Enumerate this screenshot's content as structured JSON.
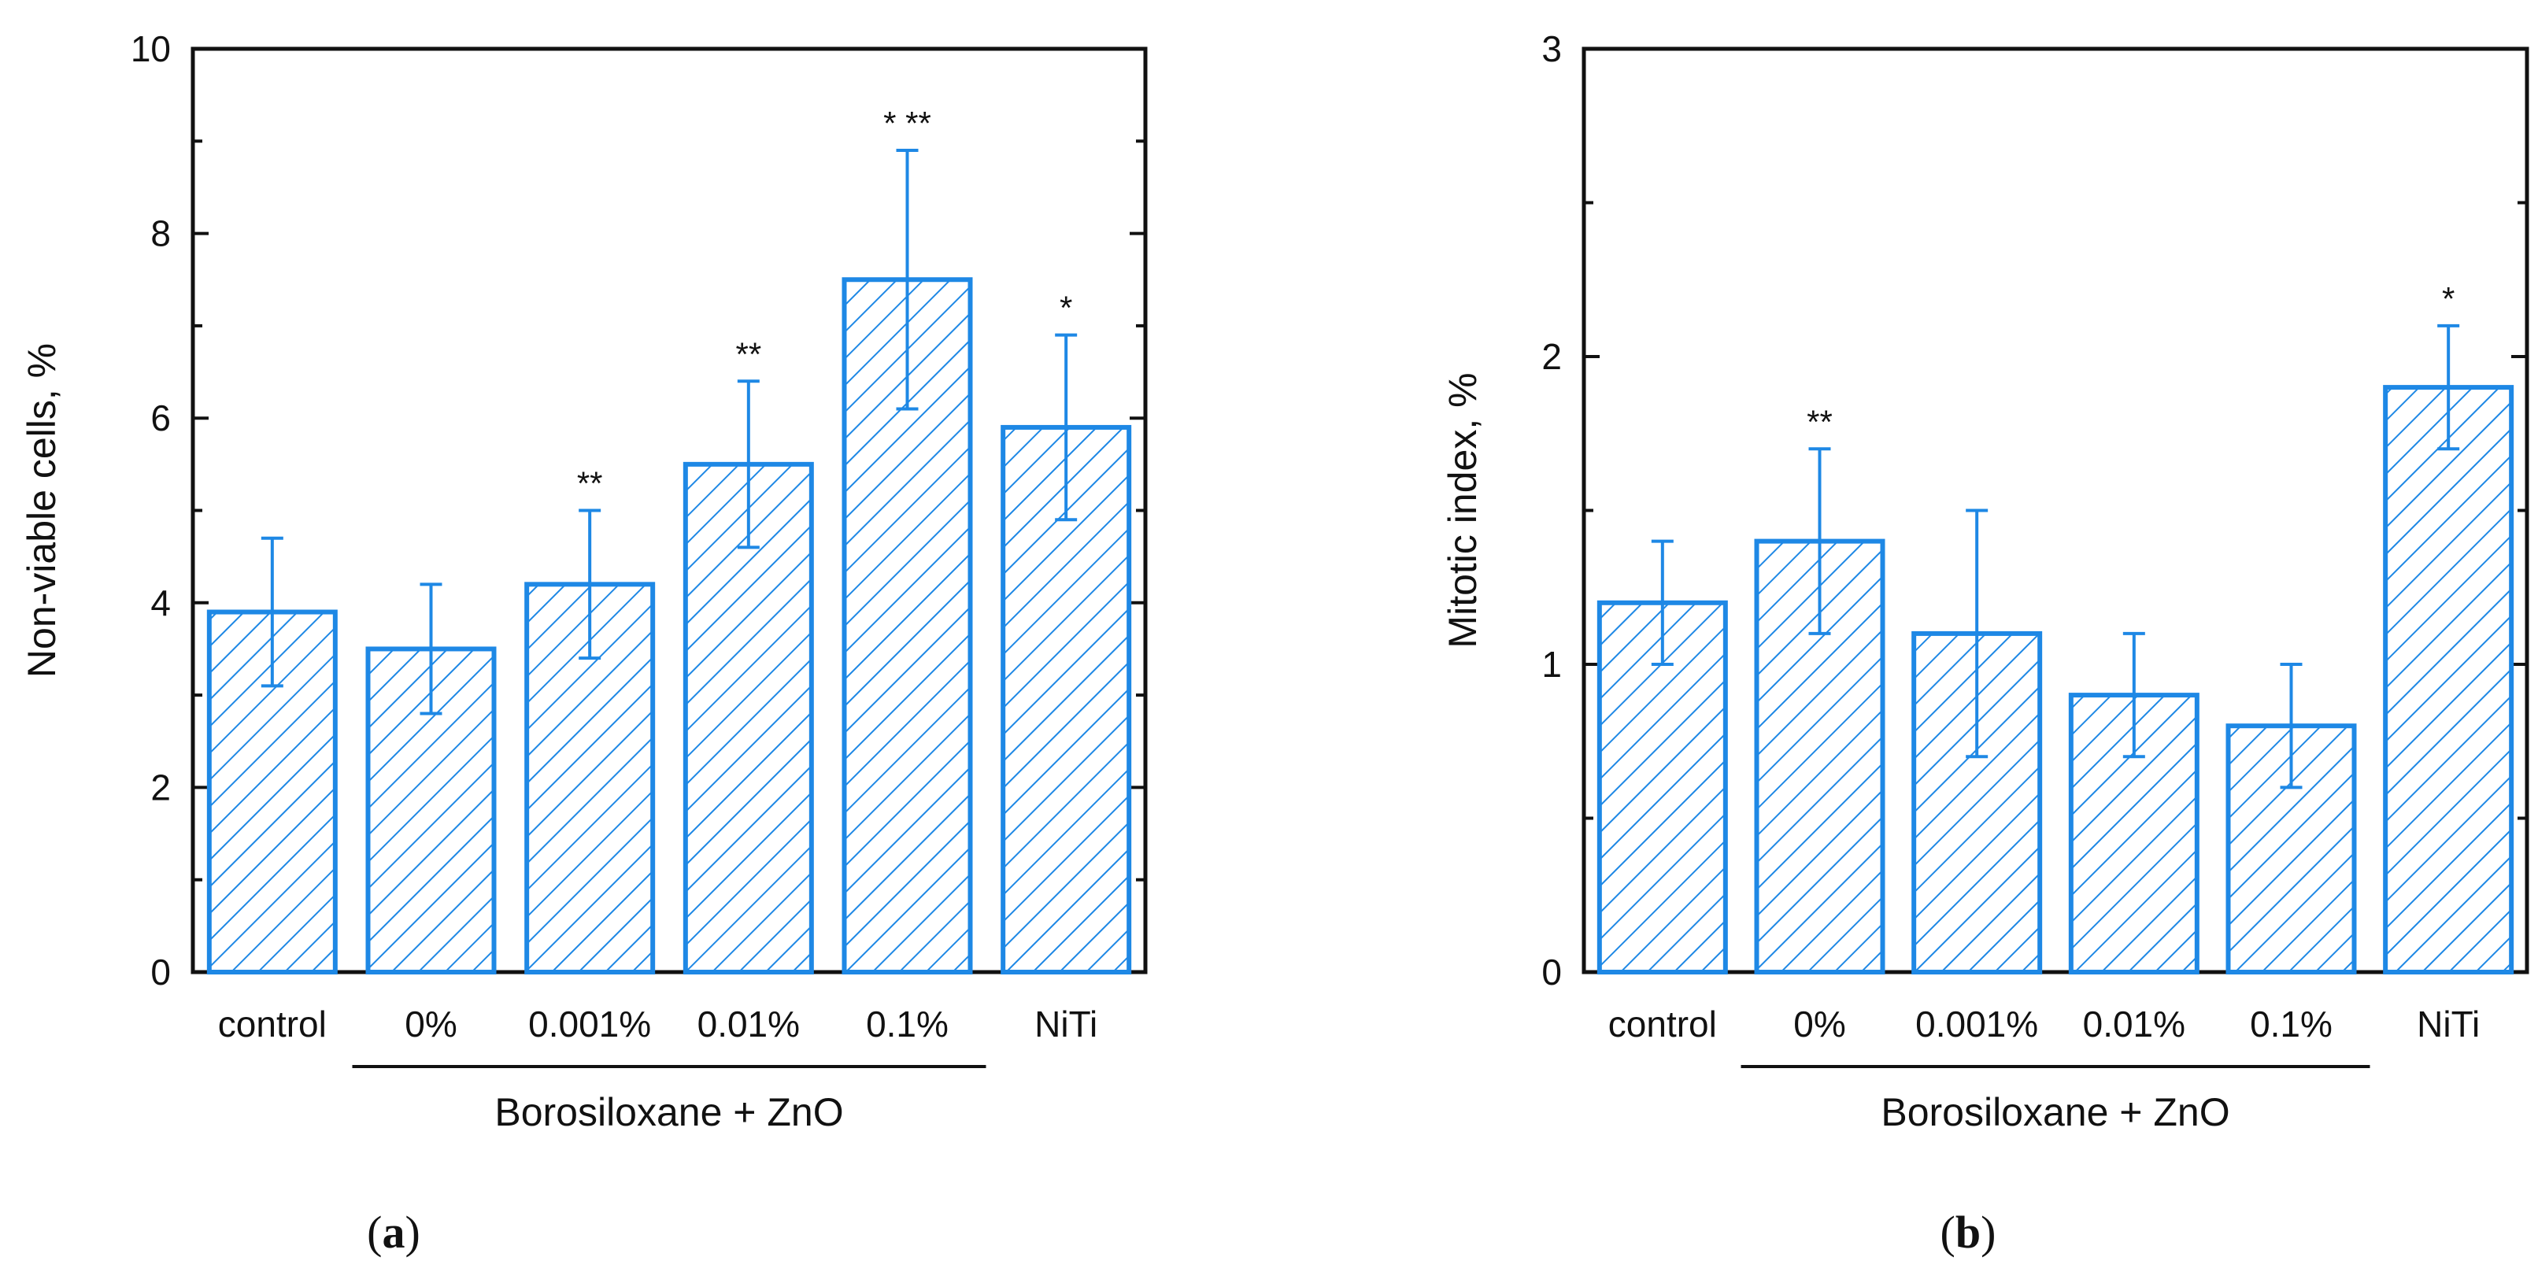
{
  "chart_data": [
    {
      "type": "bar",
      "panel_label": "a",
      "categories": [
        "control",
        "0%",
        "0.001%",
        "0.01%",
        "0.1%",
        "NiTi"
      ],
      "values": [
        3.9,
        3.5,
        4.2,
        5.5,
        7.5,
        5.9
      ],
      "errors": [
        0.8,
        0.7,
        0.8,
        0.9,
        1.4,
        1.0
      ],
      "significance": [
        "",
        "",
        "**",
        "**",
        "* **",
        "*"
      ],
      "ylabel": "Non-viable cells, %",
      "xlabel": "",
      "ylim": [
        0,
        10
      ],
      "yticks": [
        "0",
        "2",
        "4",
        "6",
        "8",
        "10"
      ],
      "group_label": "Borosiloxane + ZnO",
      "grouped_categories": [
        "0%",
        "0.001%",
        "0.01%",
        "0.1%"
      ],
      "bar_color": "#1e88e5",
      "fill": "diagonal-hatch"
    },
    {
      "type": "bar",
      "panel_label": "b",
      "categories": [
        "control",
        "0%",
        "0.001%",
        "0.01%",
        "0.1%",
        "NiTi"
      ],
      "values": [
        1.2,
        1.4,
        1.1,
        0.9,
        0.8,
        1.9
      ],
      "errors": [
        0.2,
        0.3,
        0.4,
        0.2,
        0.2,
        0.2
      ],
      "significance": [
        "",
        "**",
        "",
        "",
        "",
        "*"
      ],
      "ylabel": "Mitotic index, %",
      "xlabel": "",
      "ylim": [
        0,
        3
      ],
      "yticks": [
        "0",
        "1",
        "2",
        "3"
      ],
      "group_label": "Borosiloxane + ZnO",
      "grouped_categories": [
        "0%",
        "0.001%",
        "0.01%",
        "0.1%"
      ],
      "bar_color": "#1e88e5",
      "fill": "diagonal-hatch"
    }
  ]
}
